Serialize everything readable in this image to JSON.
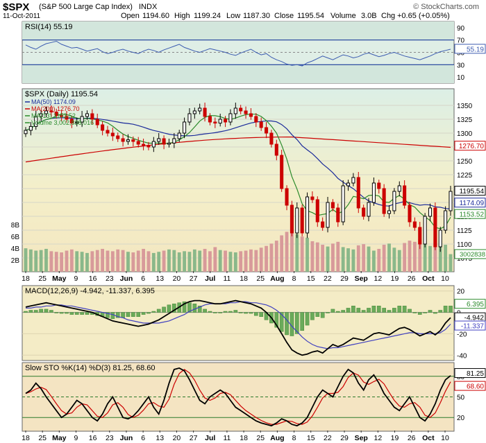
{
  "header": {
    "symbol": "$SPX",
    "name": "(S&P 500 Large Cap Index)",
    "exchange": "INDX",
    "brand": "© StockCharts.com",
    "date": "11-Oct-2011",
    "open_label": "Open",
    "open": "1194.60",
    "high_label": "High",
    "high": "1199.24",
    "low_label": "Low",
    "low": "1187.30",
    "close_label": "Close",
    "close": "1195.54",
    "volume_label": "Volume",
    "volume": "3.0B",
    "chg_label": "Chg",
    "chg": "+0.65 (+0.05%)"
  },
  "colors": {
    "up": "#000000",
    "down": "#cc0000",
    "ma50": "#1a2a9a",
    "ma200": "#cc0000",
    "ma13": "#2a8a2a",
    "vol_up": "#8ab88a",
    "vol_down": "#d89a9a",
    "rsi": "#3a5ab0",
    "macd": "#000000",
    "signal": "#4040c0",
    "hist": "#6aaa5a",
    "k": "#000000",
    "d": "#cc0000"
  },
  "chart_data": [
    {
      "type": "line",
      "panel": "rsi",
      "title": "RSI(14) 55.19",
      "ylim": [
        0,
        100
      ],
      "ticks": [
        "90",
        "70",
        "50",
        "30",
        "10"
      ],
      "levels": [
        70,
        30
      ],
      "last_label": "55.19",
      "values": [
        62,
        58,
        55,
        60,
        64,
        66,
        68,
        63,
        60,
        57,
        58,
        55,
        52,
        54,
        56,
        51,
        48,
        50,
        53,
        55,
        52,
        50,
        48,
        52,
        55,
        53,
        50,
        54,
        57,
        60,
        63,
        58,
        55,
        52,
        50,
        53,
        56,
        54,
        52,
        50,
        47,
        45,
        49,
        52,
        55,
        50,
        46,
        48,
        42,
        38,
        35,
        31,
        29,
        30,
        28,
        33,
        36,
        40,
        44,
        41,
        38,
        42,
        46,
        44,
        41,
        43,
        47,
        49,
        46,
        43,
        45,
        48,
        50,
        47,
        44,
        42,
        40,
        38,
        41,
        44,
        48,
        51,
        53,
        55
      ]
    },
    {
      "type": "candlestick",
      "panel": "price",
      "title": "$SPX (Daily) 1195.54",
      "ylim": [
        1050,
        1380
      ],
      "ticks": [
        "1350",
        "1325",
        "1300",
        "1275",
        "1250",
        "1225",
        "1200",
        "1175",
        "1150",
        "1125",
        "1100",
        "1075"
      ],
      "volume_ticks": [
        "8B",
        "6B",
        "4B",
        "2B"
      ],
      "legend": [
        {
          "text": "MA(50) 1174.09",
          "color": "#1a2a9a"
        },
        {
          "text": "MA(200) 1276.70",
          "color": "#cc0000"
        },
        {
          "text": "MA(13) 1153.52",
          "color": "#2a8a2a"
        },
        {
          "text": "Volume 3,002,838,016",
          "color": "#2a8a2a"
        }
      ],
      "right_labels": [
        {
          "text": "1276.70",
          "value": 1276.7,
          "color": "#cc0000"
        },
        {
          "text": "1195.54",
          "value": 1195.54,
          "color": "#000000"
        },
        {
          "text": "1174.09",
          "value": 1174.09,
          "color": "#1a2a9a"
        },
        {
          "text": "1153.52",
          "value": 1153.52,
          "color": "#2a8a2a"
        }
      ],
      "volume_right_label": "3002838",
      "close": [
        1305,
        1312,
        1330,
        1335,
        1340,
        1338,
        1332,
        1330,
        1325,
        1318,
        1320,
        1330,
        1335,
        1325,
        1315,
        1305,
        1300,
        1295,
        1290,
        1285,
        1288,
        1285,
        1280,
        1278,
        1275,
        1285,
        1290,
        1280,
        1282,
        1290,
        1300,
        1320,
        1335,
        1340,
        1345,
        1330,
        1320,
        1318,
        1325,
        1320,
        1335,
        1345,
        1340,
        1335,
        1330,
        1320,
        1310,
        1300,
        1280,
        1260,
        1200,
        1170,
        1120,
        1165,
        1120,
        1185,
        1180,
        1140,
        1130,
        1175,
        1165,
        1140,
        1205,
        1210,
        1220,
        1165,
        1150,
        1175,
        1210,
        1200,
        1155,
        1160,
        1195,
        1205,
        1170,
        1140,
        1130,
        1100,
        1150,
        1165,
        1095,
        1125,
        1160,
        1195
      ],
      "volume": [
        4.0,
        3.8,
        3.6,
        3.7,
        3.9,
        3.5,
        3.4,
        3.3,
        3.6,
        3.8,
        3.5,
        3.4,
        3.2,
        3.5,
        3.7,
        3.9,
        3.6,
        3.5,
        3.8,
        3.7,
        3.4,
        3.3,
        3.6,
        3.9,
        3.5,
        3.2,
        3.4,
        3.6,
        3.8,
        3.7,
        3.3,
        3.5,
        3.4,
        3.8,
        3.6,
        3.9,
        3.5,
        4.2,
        3.7,
        3.6,
        3.4,
        3.3,
        3.5,
        3.6,
        3.8,
        3.7,
        4.1,
        4.4,
        4.8,
        5.3,
        6.2,
        6.8,
        7.1,
        6.4,
        6.0,
        5.8,
        5.2,
        5.0,
        4.6,
        4.3,
        4.8,
        5.1,
        4.2,
        4.0,
        3.8,
        4.5,
        4.7,
        4.3,
        3.6,
        3.9,
        4.6,
        4.8,
        4.1,
        3.7,
        4.9,
        5.3,
        5.1,
        5.6,
        4.8,
        4.4,
        5.9,
        5.2,
        4.6,
        3.0
      ]
    },
    {
      "type": "line",
      "panel": "macd",
      "title": "MACD(12,26,9) -4.942, -11.337, 6.395",
      "ylim": [
        -45,
        25
      ],
      "ticks": [
        "20",
        "0",
        "-20",
        "-40"
      ],
      "right_labels": [
        {
          "text": "6.395",
          "value": 6.395,
          "color": "#2a8a2a"
        },
        {
          "text": "-4.942",
          "value": -4.942,
          "color": "#000000"
        },
        {
          "text": "-11.337",
          "value": -11.337,
          "color": "#4040c0"
        }
      ],
      "macd": [
        5,
        6,
        7,
        8,
        9,
        8,
        7,
        6,
        5,
        4,
        3,
        2,
        1,
        0,
        -2,
        -4,
        -6,
        -8,
        -9,
        -10,
        -11,
        -12,
        -13,
        -12,
        -11,
        -9,
        -7,
        -4,
        -1,
        2,
        5,
        8,
        10,
        11,
        11,
        10,
        9,
        8,
        8,
        9,
        10,
        11,
        10,
        9,
        8,
        6,
        4,
        0,
        -5,
        -12,
        -20,
        -28,
        -35,
        -38,
        -40,
        -39,
        -37,
        -36,
        -38,
        -34,
        -30,
        -32,
        -30,
        -27,
        -24,
        -25,
        -26,
        -23,
        -20,
        -19,
        -20,
        -21,
        -18,
        -15,
        -14,
        -16,
        -19,
        -22,
        -20,
        -18,
        -21,
        -17,
        -10,
        -5
      ],
      "signal": [
        4,
        4,
        5,
        5,
        6,
        6,
        7,
        7,
        6,
        6,
        5,
        4,
        3,
        2,
        1,
        0,
        -1,
        -2,
        -4,
        -5,
        -7,
        -8,
        -9,
        -10,
        -10,
        -10,
        -10,
        -9,
        -8,
        -6,
        -4,
        -2,
        1,
        3,
        5,
        7,
        8,
        8,
        8,
        8,
        9,
        9,
        10,
        10,
        9,
        9,
        8,
        7,
        5,
        2,
        -2,
        -7,
        -13,
        -18,
        -23,
        -27,
        -30,
        -32,
        -33,
        -34,
        -33,
        -33,
        -32,
        -31,
        -30,
        -29,
        -28,
        -27,
        -26,
        -25,
        -24,
        -23,
        -22,
        -21,
        -20,
        -19,
        -19,
        -20,
        -20,
        -20,
        -20,
        -19,
        -16,
        -11
      ]
    },
    {
      "type": "line",
      "panel": "sto",
      "title": "Slow STO %K(14) %D(3) 81.25, 68.60",
      "ylim": [
        0,
        100
      ],
      "ticks": [
        "80",
        "50",
        "20"
      ],
      "levels": [
        80,
        50,
        20
      ],
      "right_labels": [
        {
          "text": "81.25",
          "value": 81.25,
          "color": "#000000"
        },
        {
          "text": "68.60",
          "value": 68.6,
          "color": "#cc0000"
        }
      ],
      "k": [
        55,
        60,
        70,
        62,
        50,
        40,
        30,
        20,
        25,
        35,
        45,
        40,
        30,
        20,
        15,
        25,
        40,
        50,
        35,
        20,
        18,
        22,
        30,
        40,
        50,
        35,
        25,
        45,
        70,
        90,
        92,
        88,
        75,
        60,
        45,
        40,
        50,
        55,
        60,
        55,
        45,
        35,
        30,
        25,
        20,
        15,
        12,
        10,
        8,
        12,
        18,
        15,
        10,
        8,
        12,
        20,
        35,
        50,
        60,
        55,
        50,
        65,
        80,
        90,
        85,
        70,
        60,
        75,
        82,
        70,
        55,
        45,
        35,
        30,
        40,
        50,
        35,
        20,
        15,
        25,
        40,
        60,
        75,
        81
      ]
    },
    {
      "type": "axis",
      "labels": [
        "18",
        "25",
        "May",
        "9",
        "16",
        "23",
        "Jun",
        "6",
        "13",
        "20",
        "27",
        "Jul",
        "11",
        "18",
        "25",
        "Aug",
        "8",
        "15",
        "22",
        "29",
        "Sep",
        "12",
        "19",
        "26",
        "Oct",
        "10"
      ]
    }
  ]
}
